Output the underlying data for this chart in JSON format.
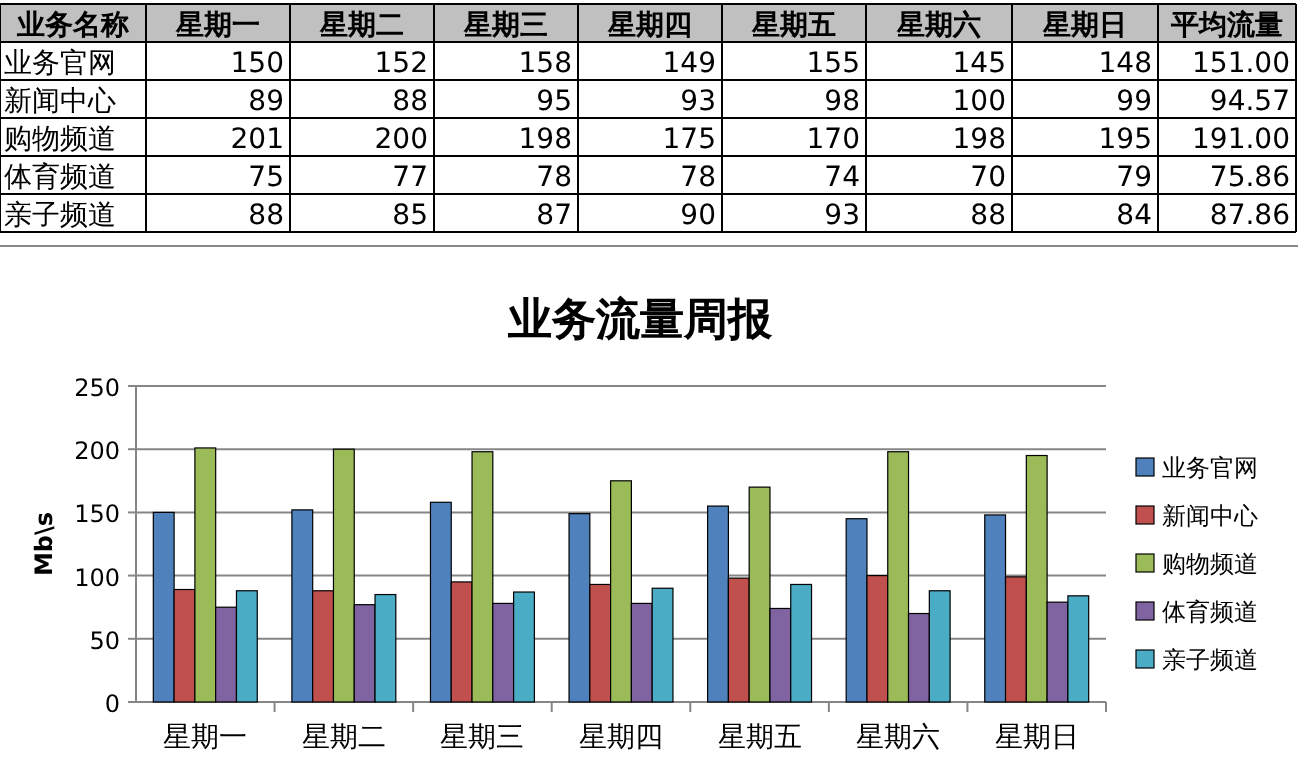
{
  "chart_data": [
    {
      "type": "heatmap",
      "ylabel": "业务名称",
      "categories": [
        "星期一",
        "星期二",
        "星期三",
        "星期四",
        "星期五",
        "星期六",
        "星期日",
        "平均流量"
      ],
      "y_categories": [
        "业务官网",
        "新闻中心",
        "购物频道",
        "体育频道",
        "亲子频道"
      ],
      "cells": [
        [
          150,
          152,
          158,
          149,
          155,
          145,
          148,
          151.0
        ],
        [
          89,
          88,
          95,
          93,
          98,
          100,
          99,
          94.57
        ],
        [
          201,
          200,
          198,
          175,
          170,
          198,
          195,
          191.0
        ],
        [
          75,
          77,
          78,
          78,
          74,
          70,
          79,
          75.86
        ],
        [
          88,
          85,
          87,
          90,
          93,
          88,
          84,
          87.86
        ]
      ],
      "cell_labels": [
        [
          "150",
          "152",
          "158",
          "149",
          "155",
          "145",
          "148",
          "151.00"
        ],
        [
          "89",
          "88",
          "95",
          "93",
          "98",
          "100",
          "99",
          "94.57"
        ],
        [
          "201",
          "200",
          "198",
          "175",
          "170",
          "198",
          "195",
          "191.00"
        ],
        [
          "75",
          "77",
          "78",
          "78",
          "74",
          "70",
          "79",
          "75.86"
        ],
        [
          "88",
          "85",
          "87",
          "90",
          "93",
          "88",
          "84",
          "87.86"
        ]
      ],
      "data_labels": true
    },
    {
      "type": "bar",
      "title": "业务流量周报",
      "ylabel": "Mb\\s",
      "categories": [
        "星期一",
        "星期二",
        "星期三",
        "星期四",
        "星期五",
        "星期六",
        "星期日"
      ],
      "series": [
        {
          "name": "业务官网",
          "color": "#4f81bd",
          "values": [
            150,
            152,
            158,
            149,
            155,
            145,
            148
          ]
        },
        {
          "name": "新闻中心",
          "color": "#c0504d",
          "values": [
            89,
            88,
            95,
            93,
            98,
            100,
            99
          ]
        },
        {
          "name": "购物频道",
          "color": "#9bbb59",
          "values": [
            201,
            200,
            198,
            175,
            170,
            198,
            195
          ]
        },
        {
          "name": "体育频道",
          "color": "#8064a2",
          "values": [
            75,
            77,
            78,
            78,
            74,
            70,
            79
          ]
        },
        {
          "name": "亲子频道",
          "color": "#4bacc6",
          "values": [
            88,
            85,
            87,
            90,
            93,
            88,
            84
          ]
        }
      ],
      "ylim": [
        0,
        250
      ],
      "yticks": [
        0,
        50,
        100,
        150,
        200,
        250
      ],
      "grid": "y",
      "legend": "right"
    }
  ]
}
